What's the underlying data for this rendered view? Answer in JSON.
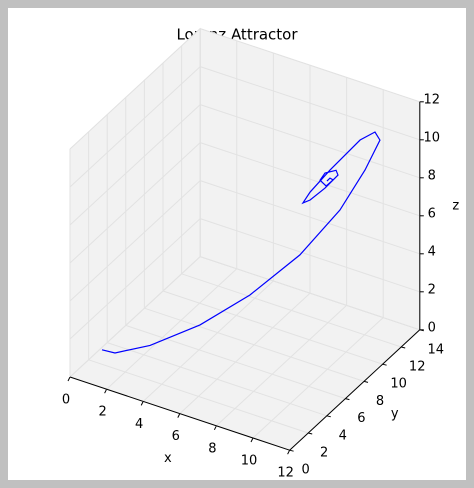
{
  "chart_data": {
    "type": "line3d",
    "title": "Lorenz Attractor",
    "xlabel": "x",
    "ylabel": "y",
    "zlabel": "z",
    "xlim": [
      0,
      12
    ],
    "ylim": [
      0,
      14
    ],
    "zlim": [
      0,
      12
    ],
    "xticks": [
      0,
      2,
      4,
      6,
      8,
      10,
      12
    ],
    "yticks": [
      0,
      2,
      4,
      6,
      8,
      10,
      12,
      14
    ],
    "zticks": [
      0,
      2,
      4,
      6,
      8,
      10,
      12
    ],
    "grid": true,
    "series": [
      {
        "color": "#0000ff",
        "x": [
          1.16,
          1.63,
          2.9,
          4.71,
          6.52,
          8.33,
          9.78,
          10.69,
          11.23,
          11.05,
          10.51,
          9.42,
          8.7,
          8.44,
          8.7,
          9.24,
          9.71,
          9.64,
          9.24,
          9.06,
          9.28,
          9.53,
          9.42,
          9.31
        ],
        "y": [
          1.16,
          1.63,
          2.9,
          4.71,
          6.52,
          8.33,
          9.78,
          10.69,
          11.23,
          11.05,
          10.51,
          9.42,
          8.7,
          8.44,
          8.7,
          9.24,
          9.71,
          9.64,
          9.24,
          9.06,
          9.28,
          9.53,
          9.42,
          9.31
        ],
        "z": [
          1.28,
          1.05,
          1.28,
          2.12,
          3.46,
          5.33,
          7.5,
          9.49,
          10.99,
          11.44,
          11.09,
          9.65,
          8.59,
          8.05,
          8.17,
          8.73,
          9.35,
          9.61,
          9.52,
          9.17,
          8.83,
          9.12,
          9.23,
          9.09
        ]
      }
    ]
  }
}
